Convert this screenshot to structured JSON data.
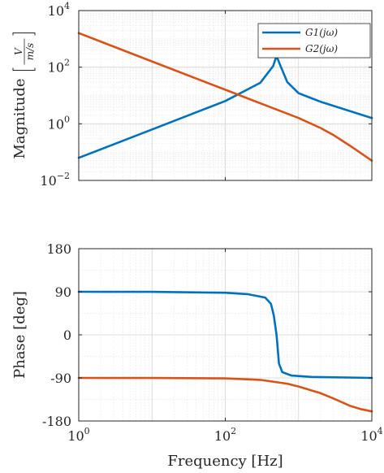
{
  "chart_data": [
    {
      "type": "line",
      "xscale": "log",
      "yscale": "log",
      "xlim": [
        1,
        10000
      ],
      "ylim": [
        0.01,
        10000
      ],
      "xticks": [
        1,
        100,
        10000
      ],
      "yticks": [
        0.01,
        1,
        100,
        10000
      ],
      "ylabel": "Magnitude",
      "ylabel_units": {
        "numerator": "V",
        "denominator": "m/s"
      },
      "grid": true,
      "legend": {
        "location": "top-right",
        "entries": [
          "G1(jω)",
          "G2(jω)"
        ]
      },
      "series": [
        {
          "name": "G1(jω)",
          "color": "#0072BD",
          "x": [
            1,
            10,
            100,
            300,
            450,
            500,
            560,
            700,
            1000,
            2000,
            10000
          ],
          "y": [
            0.063,
            0.63,
            6.4,
            28,
            110,
            250,
            120,
            30,
            12,
            6,
            1.6
          ]
        },
        {
          "name": "G2(jω)",
          "color": "#D95319",
          "x": [
            1,
            10,
            100,
            300,
            1000,
            2000,
            3000,
            5000,
            10000
          ],
          "y": [
            1600,
            160,
            16,
            5.3,
            1.6,
            0.71,
            0.4,
            0.17,
            0.05
          ]
        }
      ]
    },
    {
      "type": "line",
      "xscale": "log",
      "xlim": [
        1,
        10000
      ],
      "ylim": [
        -180,
        180
      ],
      "xticks": [
        1,
        100,
        10000
      ],
      "yticks": [
        -180,
        -90,
        0,
        90,
        180
      ],
      "xlabel": "Frequency [Hz]",
      "ylabel": "Phase [deg]",
      "grid": true,
      "series": [
        {
          "name": "G1(jω)",
          "color": "#0072BD",
          "x": [
            1,
            10,
            100,
            200,
            350,
            420,
            460,
            490,
            500,
            510,
            540,
            600,
            800,
            1500,
            10000
          ],
          "y": [
            90,
            89.8,
            88,
            85,
            78,
            65,
            40,
            10,
            0,
            -15,
            -60,
            -78,
            -85,
            -88,
            -90
          ]
        },
        {
          "name": "G2(jω)",
          "color": "#D95319",
          "x": [
            1,
            10,
            100,
            300,
            700,
            1000,
            2000,
            3000,
            5000,
            7000,
            10000
          ],
          "y": [
            -90,
            -90.1,
            -91,
            -94,
            -102,
            -108,
            -122,
            -133,
            -148,
            -155,
            -160
          ]
        }
      ]
    }
  ]
}
